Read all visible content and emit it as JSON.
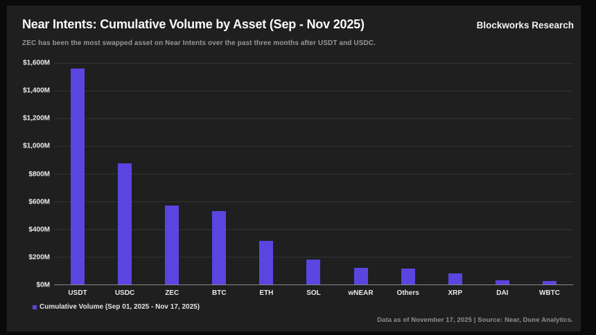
{
  "header": {
    "title": "Near Intents: Cumulative Volume by Asset (Sep - Nov 2025)",
    "brand": "Blockworks Research",
    "subtitle": "ZEC has been the most swapped asset on Near Intents over the past three months after USDT and USDC."
  },
  "chart_data": {
    "type": "bar",
    "title": "Near Intents: Cumulative Volume by Asset (Sep - Nov 2025)",
    "categories": [
      "USDT",
      "USDC",
      "ZEC",
      "BTC",
      "ETH",
      "SOL",
      "wNEAR",
      "Others",
      "XRP",
      "DAI",
      "WBTC"
    ],
    "values": [
      1560,
      875,
      570,
      530,
      315,
      180,
      120,
      115,
      80,
      30,
      25
    ],
    "values_unit": "$M",
    "series_name": "Cumulative Volume (Sep 01, 2025 - Nov 17, 2025)",
    "xlabel": "",
    "ylabel": "",
    "ylim": [
      0,
      1600
    ],
    "ytick_step": 200,
    "yticks": [
      "$0M",
      "$200M",
      "$400M",
      "$600M",
      "$800M",
      "$1,000M",
      "$1,200M",
      "$1,400M",
      "$1,600M"
    ],
    "grid": true,
    "legend_position": "bottom-left",
    "bar_color": "#5b45e0"
  },
  "legend": {
    "marker_color": "#5b45e0",
    "label": "Cumulative Volume (Sep 01, 2025 - Nov 17, 2025)"
  },
  "footer": {
    "note": "Data as of November 17, 2025 | Source: Near, Dune Analytics."
  },
  "colors": {
    "background": "#0a0a0a",
    "panel": "#1f1f1f",
    "bar": "#5b45e0",
    "gridline": "#333333",
    "axis_line": "#8a8a8a",
    "title_text": "#fafafa",
    "subtitle_text": "#979797",
    "footer_text": "#8f8f8f"
  }
}
